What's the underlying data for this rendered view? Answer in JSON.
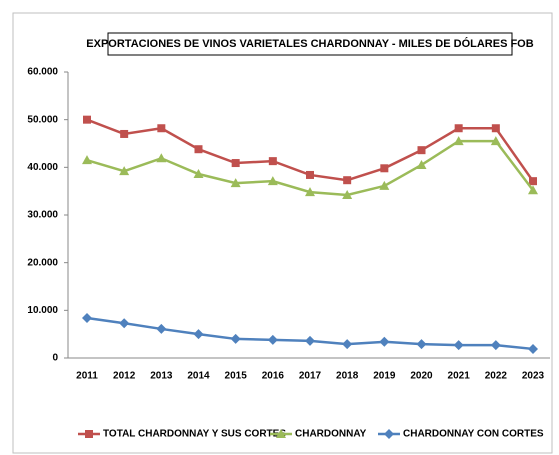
{
  "chart_data": {
    "type": "line",
    "title": "EXPORTACIONES DE VINOS VARIETALES CHARDONNAY - MILES DE DÓLARES FOB",
    "categories": [
      "2011",
      "2012",
      "2013",
      "2014",
      "2015",
      "2016",
      "2017",
      "2018",
      "2019",
      "2020",
      "2021",
      "2022",
      "2023"
    ],
    "series": [
      {
        "name": "TOTAL CHARDONNAY Y SUS CORTES",
        "color": "#c0504d",
        "marker": "square",
        "values": [
          50000,
          47000,
          48200,
          43800,
          40900,
          41300,
          38400,
          37300,
          39800,
          43600,
          48200,
          48200,
          37100
        ]
      },
      {
        "name": "CHARDONNAY",
        "color": "#9bbb59",
        "marker": "triangle",
        "values": [
          41500,
          39200,
          41900,
          38600,
          36700,
          37100,
          34800,
          34200,
          36100,
          40500,
          45500,
          45500,
          35200
        ]
      },
      {
        "name": "CHARDONNAY CON  CORTES",
        "color": "#4f81bd",
        "marker": "diamond",
        "values": [
          8400,
          7300,
          6100,
          5000,
          4000,
          3800,
          3600,
          2900,
          3400,
          2900,
          2700,
          2700,
          1900
        ]
      }
    ],
    "ylim": [
      0,
      60000
    ],
    "yticks": [
      0,
      {
        "value": 10000,
        "label": "10.000"
      },
      {
        "value": 20000,
        "label": "20.000"
      },
      {
        "value": 30000,
        "label": "30.000"
      },
      {
        "value": 40000,
        "label": "40.000"
      },
      {
        "value": 50000,
        "label": "50.000"
      },
      {
        "value": 60000,
        "label": "60.000"
      }
    ],
    "grid": false,
    "legend": "bottom"
  }
}
